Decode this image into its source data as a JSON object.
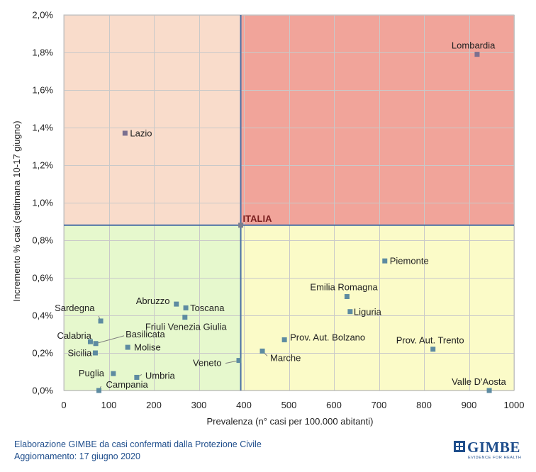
{
  "chart_data": {
    "type": "scatter",
    "xlabel": "Prevalenza  (n° casi per 100.000 abitanti)",
    "ylabel": "Incremento %  casi (settimana 10-17 giugno)",
    "xlim": [
      0,
      1000
    ],
    "ylim": [
      0,
      2.0
    ],
    "x_ticks": [
      "0",
      "100",
      "200",
      "300",
      "400",
      "500",
      "600",
      "700",
      "800",
      "900",
      "1000"
    ],
    "y_ticks": [
      "0,0%",
      "0,2%",
      "0,4%",
      "0,6%",
      "0,8%",
      "1,0%",
      "1,2%",
      "1,4%",
      "1,6%",
      "1,8%",
      "2,0%"
    ],
    "reference": {
      "label": "ITALIA",
      "x": 393,
      "y": 0.88
    },
    "quadrant_colors": {
      "top_left": "#f9dccb",
      "top_right": "#f1a49a",
      "bottom_left": "#e6f8cd",
      "bottom_right": "#fbfbc8"
    },
    "marker_color": "#5d8ba1",
    "marker_color_top": "#7b6f8f",
    "points": [
      {
        "label": "Lombardia",
        "x": 918,
        "y": 1.79
      },
      {
        "label": "Lazio",
        "x": 136,
        "y": 1.37
      },
      {
        "label": "Piemonte",
        "x": 713,
        "y": 0.69
      },
      {
        "label": "Emilia Romagna",
        "x": 629,
        "y": 0.5
      },
      {
        "label": "Liguria",
        "x": 636,
        "y": 0.42
      },
      {
        "label": "Prov. Aut. Bolzano",
        "x": 490,
        "y": 0.27
      },
      {
        "label": "Prov. Aut. Trento",
        "x": 820,
        "y": 0.22
      },
      {
        "label": "Marche",
        "x": 441,
        "y": 0.21
      },
      {
        "label": "Veneto",
        "x": 389,
        "y": 0.16
      },
      {
        "label": "Valle D'Aosta",
        "x": 945,
        "y": 0.0
      },
      {
        "label": "Abruzzo",
        "x": 250,
        "y": 0.46
      },
      {
        "label": "Toscana",
        "x": 271,
        "y": 0.44
      },
      {
        "label": "Friuli Venezia Giulia",
        "x": 269,
        "y": 0.39
      },
      {
        "label": "Sardegna",
        "x": 82,
        "y": 0.37
      },
      {
        "label": "Calabria",
        "x": 59,
        "y": 0.26
      },
      {
        "label": "Basilicata",
        "x": 71,
        "y": 0.25
      },
      {
        "label": "Molise",
        "x": 142,
        "y": 0.23
      },
      {
        "label": "Sicilia",
        "x": 70,
        "y": 0.2
      },
      {
        "label": "Puglia",
        "x": 110,
        "y": 0.09
      },
      {
        "label": "Umbria",
        "x": 162,
        "y": 0.07
      },
      {
        "label": "Campania",
        "x": 78,
        "y": 0.0
      }
    ]
  },
  "footer": {
    "line1": "Elaborazione GIMBE da casi confermati dalla Protezione Civile",
    "line2": "Aggiornamento: 17 giugno 2020"
  },
  "logo": {
    "name": "GIMBE",
    "tagline": "EVIDENCE FOR HEALTH",
    "color": "#1f4e8c"
  }
}
